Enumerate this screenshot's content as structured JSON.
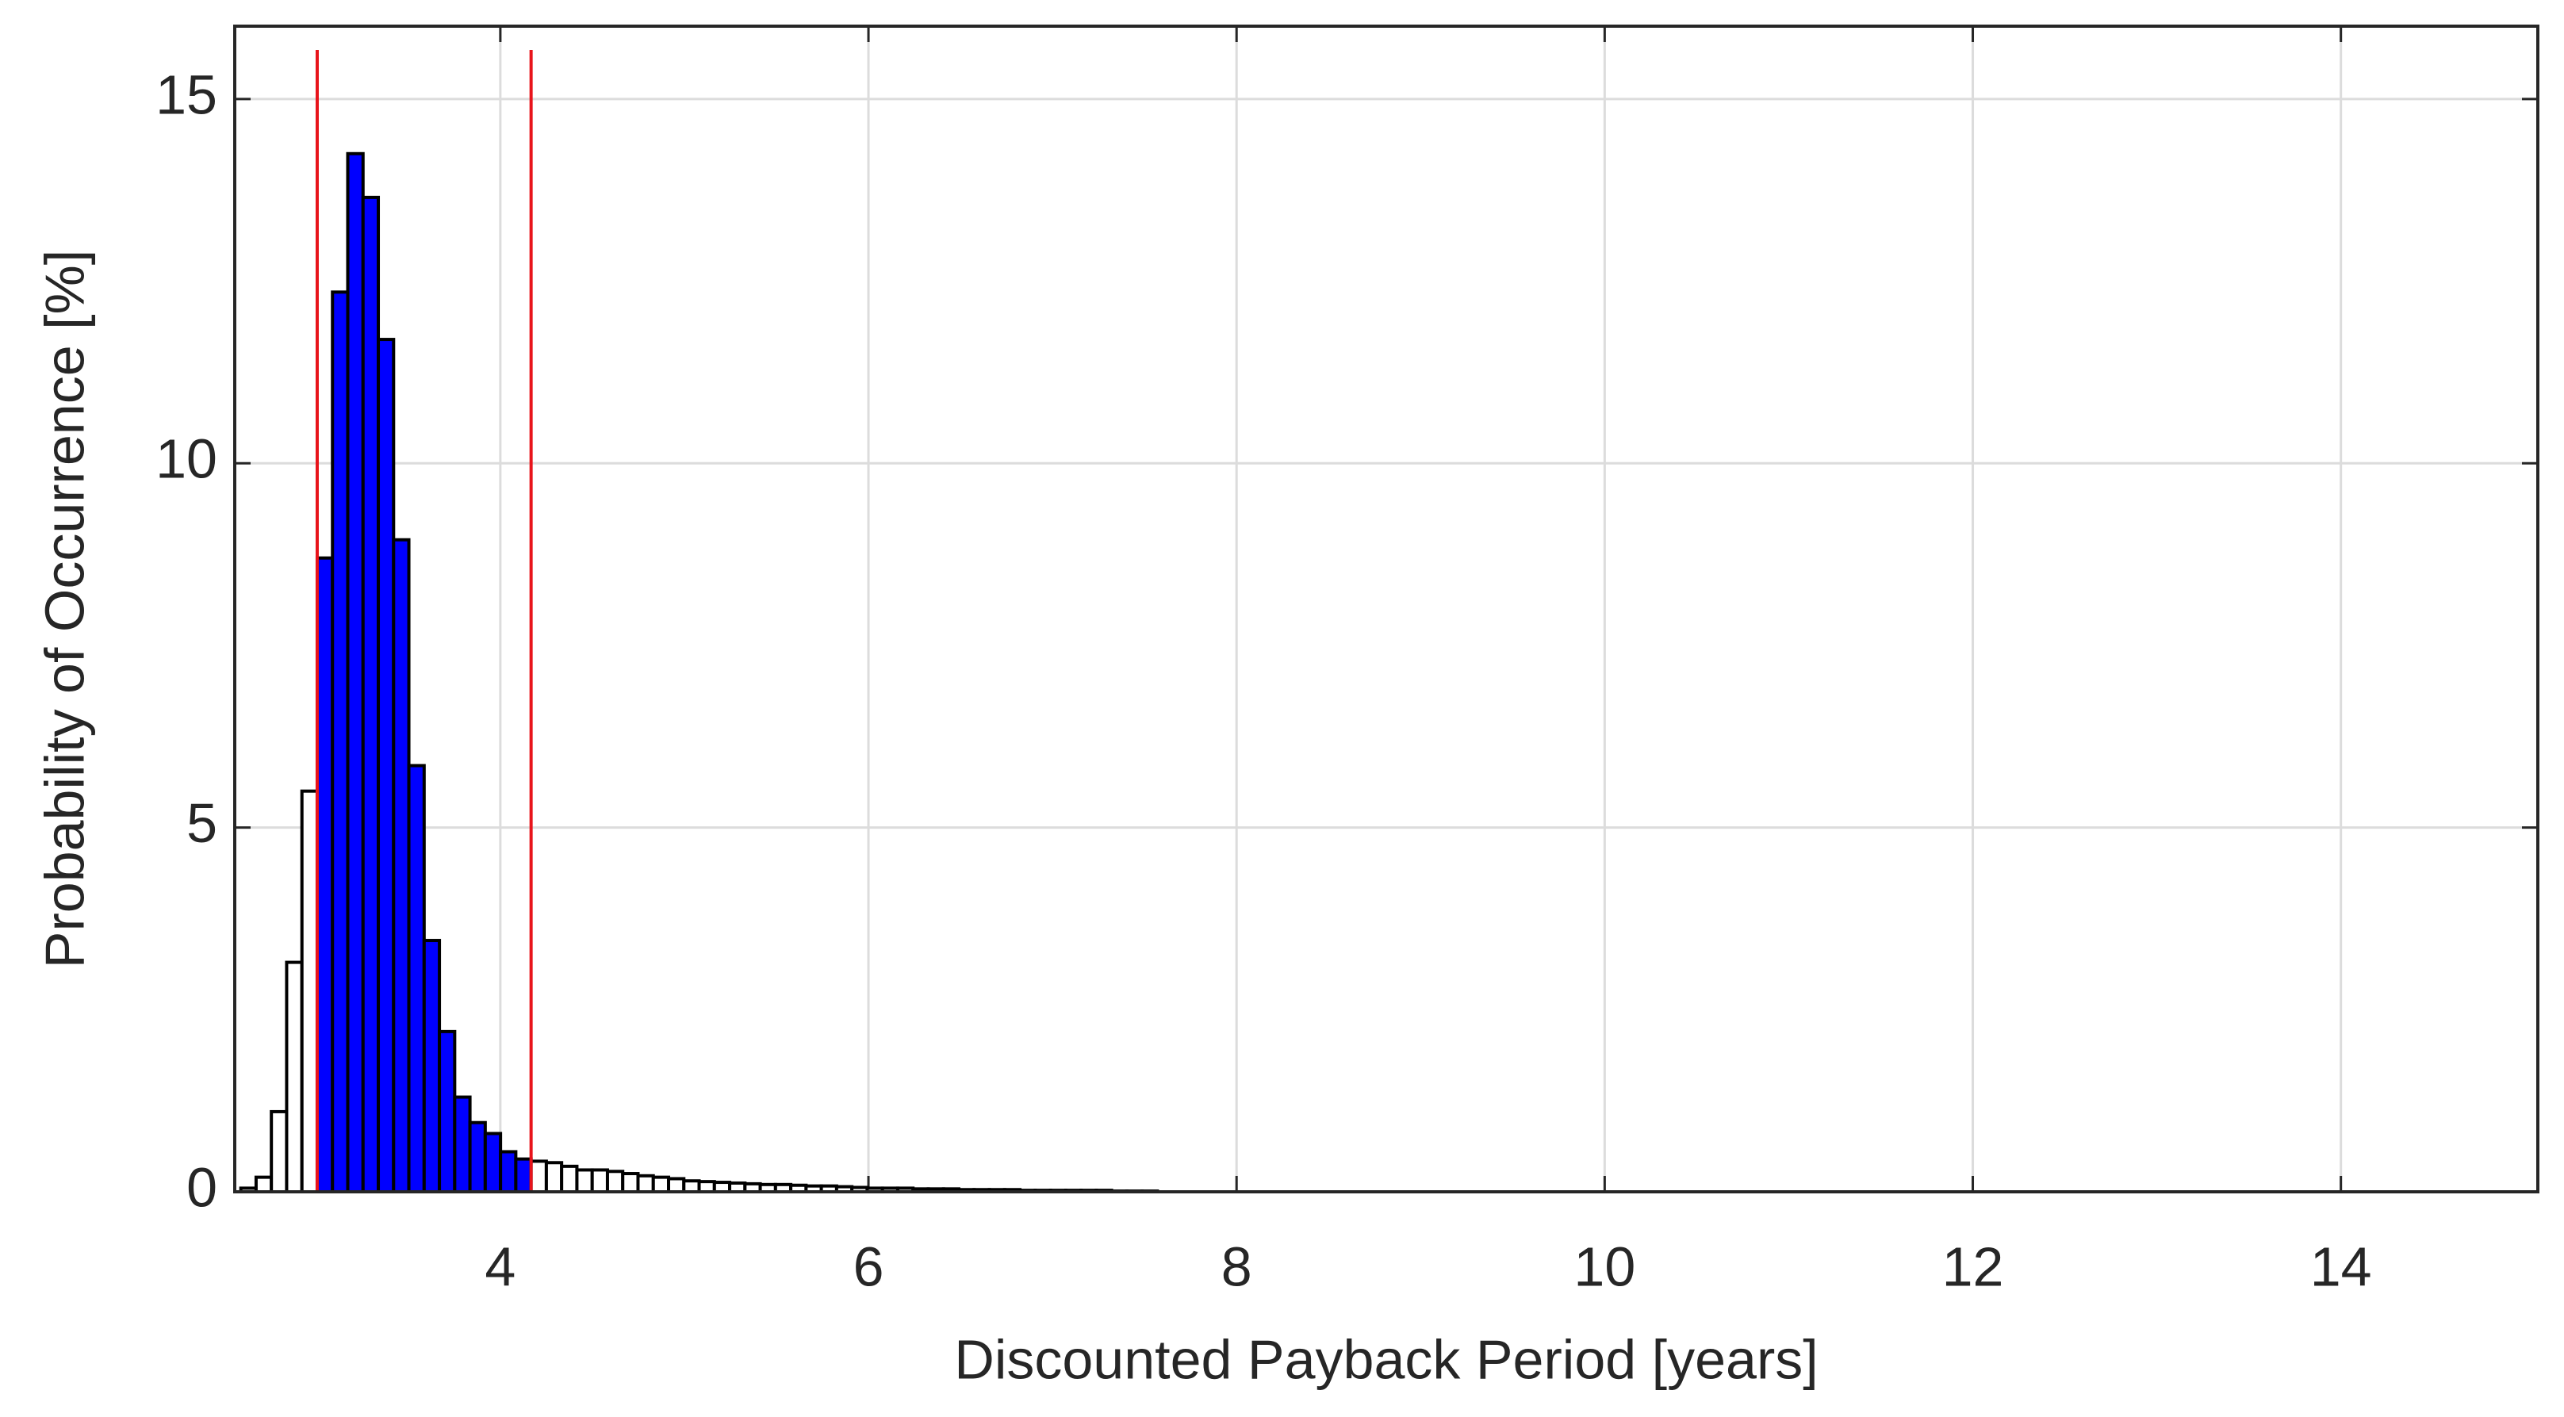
{
  "chart_data": {
    "type": "histogram",
    "xlabel": "Discounted Payback Period [years]",
    "ylabel": "Probability of Occurrence [%]",
    "bins": [
      2.59,
      2.673,
      2.756,
      2.839,
      2.922,
      3.005,
      3.088,
      3.171,
      3.254,
      3.337,
      3.42,
      3.503,
      3.586,
      3.669,
      3.752,
      3.835,
      3.918,
      4.001,
      4.084,
      4.167,
      4.25,
      4.333,
      4.416,
      4.499,
      4.582,
      4.665,
      4.748,
      4.831,
      4.914,
      4.997,
      5.08,
      5.163,
      5.246,
      5.329,
      5.412,
      5.495,
      5.578,
      5.661,
      5.744,
      5.827,
      5.91,
      5.993,
      6.076,
      6.159,
      6.242,
      6.325,
      6.408,
      6.491,
      6.574,
      6.657,
      6.74,
      6.823,
      6.906,
      6.989,
      7.072,
      7.155,
      7.238,
      7.321,
      7.404,
      7.487,
      7.57
    ],
    "values": [
      0.05,
      0.2,
      1.1,
      3.15,
      5.5,
      8.7,
      12.35,
      14.25,
      13.65,
      11.7,
      8.95,
      5.85,
      3.45,
      2.2,
      1.3,
      0.95,
      0.8,
      0.55,
      0.45,
      0.42,
      0.4,
      0.35,
      0.3,
      0.3,
      0.28,
      0.25,
      0.22,
      0.2,
      0.18,
      0.15,
      0.14,
      0.13,
      0.12,
      0.11,
      0.1,
      0.1,
      0.09,
      0.08,
      0.08,
      0.07,
      0.06,
      0.05,
      0.05,
      0.05,
      0.04,
      0.04,
      0.04,
      0.03,
      0.03,
      0.03,
      0.03,
      0.02,
      0.02,
      0.02,
      0.02,
      0.02,
      0.02,
      0.01,
      0.01,
      0.01
    ],
    "color": "#ffffff",
    "highlight_color": "#0000ff",
    "vlines": [
      3.005,
      4.167
    ],
    "vline_color": "#e8141b",
    "xlim": [
      2.557,
      15.07
    ],
    "xticks": [
      4,
      6,
      8,
      10,
      12,
      14
    ],
    "ylim": [
      0,
      16
    ],
    "yticks": [
      0,
      5,
      10,
      15
    ],
    "grid": true
  }
}
